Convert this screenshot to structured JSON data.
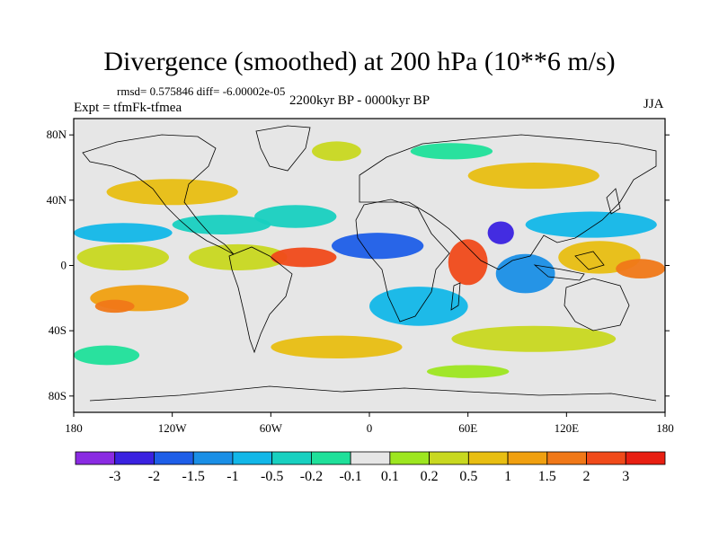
{
  "title": "Divergence (smoothed) at 200 hPa (10**6 m/s)",
  "stats_text": "rmsd= 0.575846  diff= -6.00002e-05",
  "experiment_text": "Expt = tfmFk-tfmea",
  "period_text": "2200kyr BP - 0000kyr BP",
  "season_text": "JJA",
  "map": {
    "lon_range": [
      -180,
      180
    ],
    "lat_range": [
      -90,
      90
    ],
    "lat_ticks": [
      {
        "value": 80,
        "label": "80N"
      },
      {
        "value": 40,
        "label": "40N"
      },
      {
        "value": 0,
        "label": "0"
      },
      {
        "value": -40,
        "label": "40S"
      },
      {
        "value": -80,
        "label": "80S"
      }
    ],
    "lon_ticks": [
      {
        "value": -180,
        "label": "180"
      },
      {
        "value": -120,
        "label": "120W"
      },
      {
        "value": -60,
        "label": "60W"
      },
      {
        "value": 0,
        "label": "0"
      },
      {
        "value": 60,
        "label": "60E"
      },
      {
        "value": 120,
        "label": "120E"
      },
      {
        "value": 180,
        "label": "180"
      }
    ]
  },
  "colorbar": {
    "colors": [
      "#8a2be2",
      "#3a22e0",
      "#1e5ee8",
      "#1a8fe6",
      "#12b7e8",
      "#18d0c0",
      "#1fe09a",
      "#e6e6e6",
      "#9de620",
      "#c8d820",
      "#e8be12",
      "#f0a010",
      "#f07818",
      "#f04a1a",
      "#e81f12"
    ],
    "labels": [
      "-3",
      "-2",
      "-1.5",
      "-1",
      "-0.5",
      "-0.2",
      "-0.1",
      "0.1",
      "0.2",
      "0.5",
      "1",
      "1.5",
      "2",
      "3"
    ]
  },
  "field_blobs": [
    {
      "lon": -150,
      "lat": 20,
      "rlon": 30,
      "rlat": 6,
      "level": 4
    },
    {
      "lon": -90,
      "lat": 25,
      "rlon": 30,
      "rlat": 6,
      "level": 5
    },
    {
      "lon": -45,
      "lat": 30,
      "rlon": 25,
      "rlat": 7,
      "level": 5
    },
    {
      "lon": -150,
      "lat": 5,
      "rlon": 28,
      "rlat": 8,
      "level": 9
    },
    {
      "lon": -80,
      "lat": 5,
      "rlon": 30,
      "rlat": 8,
      "level": 9
    },
    {
      "lon": -40,
      "lat": 5,
      "rlon": 20,
      "rlat": 6,
      "level": 13
    },
    {
      "lon": -140,
      "lat": -20,
      "rlon": 30,
      "rlat": 8,
      "level": 11
    },
    {
      "lon": -155,
      "lat": -25,
      "rlon": 12,
      "rlat": 4,
      "level": 12
    },
    {
      "lon": 5,
      "lat": 12,
      "rlon": 28,
      "rlat": 8,
      "level": 2
    },
    {
      "lon": 60,
      "lat": 2,
      "rlon": 12,
      "rlat": 14,
      "level": 13
    },
    {
      "lon": 80,
      "lat": 20,
      "rlon": 8,
      "rlat": 7,
      "level": 1
    },
    {
      "lon": 95,
      "lat": -5,
      "rlon": 18,
      "rlat": 12,
      "level": 3
    },
    {
      "lon": 140,
      "lat": 5,
      "rlon": 25,
      "rlat": 10,
      "level": 10
    },
    {
      "lon": 165,
      "lat": -2,
      "rlon": 15,
      "rlat": 6,
      "level": 12
    },
    {
      "lon": 135,
      "lat": 25,
      "rlon": 40,
      "rlat": 8,
      "level": 4
    },
    {
      "lon": 30,
      "lat": -25,
      "rlon": 30,
      "rlat": 12,
      "level": 4
    },
    {
      "lon": -120,
      "lat": 45,
      "rlon": 40,
      "rlat": 8,
      "level": 10
    },
    {
      "lon": 100,
      "lat": 55,
      "rlon": 40,
      "rlat": 8,
      "level": 10
    },
    {
      "lon": -20,
      "lat": -50,
      "rlon": 40,
      "rlat": 7,
      "level": 10
    },
    {
      "lon": 100,
      "lat": -45,
      "rlon": 50,
      "rlat": 8,
      "level": 9
    },
    {
      "lon": -160,
      "lat": -55,
      "rlon": 20,
      "rlat": 6,
      "level": 6
    },
    {
      "lon": 50,
      "lat": 70,
      "rlon": 25,
      "rlat": 5,
      "level": 6
    },
    {
      "lon": 60,
      "lat": -65,
      "rlon": 25,
      "rlat": 4,
      "level": 8
    },
    {
      "lon": -20,
      "lat": 70,
      "rlon": 15,
      "rlat": 6,
      "level": 9
    }
  ]
}
